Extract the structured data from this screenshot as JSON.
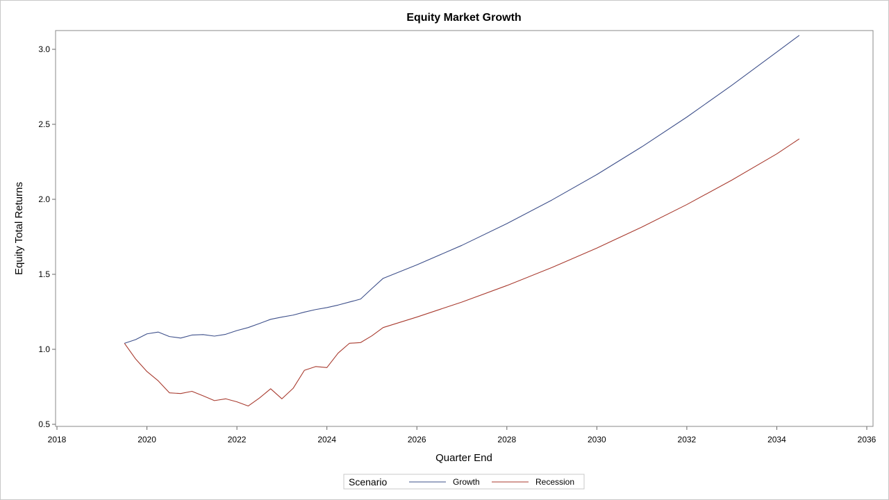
{
  "chart_data": {
    "type": "line",
    "title": "Equity Market Growth",
    "xlabel": "Quarter End",
    "ylabel": "Equity Total Returns",
    "xlim": [
      2018,
      2036
    ],
    "ylim": [
      0.5,
      3.1
    ],
    "xticks": [
      2018,
      2020,
      2022,
      2024,
      2026,
      2028,
      2030,
      2032,
      2034,
      2036
    ],
    "xtick_labels": [
      "2018",
      "2020",
      "2022",
      "2024",
      "2026",
      "2028",
      "2030",
      "2032",
      "2034",
      "2036"
    ],
    "yticks": [
      0.5,
      1.0,
      1.5,
      2.0,
      2.5,
      3.0
    ],
    "ytick_labels": [
      "0.5",
      "1.0",
      "1.5",
      "2.0",
      "2.5",
      "3.0"
    ],
    "grid": false,
    "legend": {
      "title": "Scenario",
      "position": "bottom-center"
    },
    "series": [
      {
        "name": "Growth",
        "color": "#3d4f8a",
        "points": [
          [
            2019.5,
            1.04
          ],
          [
            2019.75,
            1.065
          ],
          [
            2020.0,
            1.103
          ],
          [
            2020.25,
            1.115
          ],
          [
            2020.5,
            1.085
          ],
          [
            2020.75,
            1.075
          ],
          [
            2021.0,
            1.095
          ],
          [
            2021.25,
            1.098
          ],
          [
            2021.5,
            1.088
          ],
          [
            2021.75,
            1.1
          ],
          [
            2022.0,
            1.125
          ],
          [
            2022.25,
            1.145
          ],
          [
            2022.5,
            1.172
          ],
          [
            2022.75,
            1.2
          ],
          [
            2023.0,
            1.215
          ],
          [
            2023.25,
            1.228
          ],
          [
            2023.5,
            1.248
          ],
          [
            2023.75,
            1.265
          ],
          [
            2024.0,
            1.278
          ],
          [
            2024.25,
            1.295
          ],
          [
            2024.5,
            1.315
          ],
          [
            2024.75,
            1.335
          ],
          [
            2025.0,
            1.405
          ],
          [
            2025.25,
            1.473
          ],
          [
            2026.0,
            1.563
          ],
          [
            2027.0,
            1.693
          ],
          [
            2028.0,
            1.838
          ],
          [
            2029.0,
            1.995
          ],
          [
            2030.0,
            2.165
          ],
          [
            2031.0,
            2.35
          ],
          [
            2032.0,
            2.548
          ],
          [
            2033.0,
            2.76
          ],
          [
            2034.0,
            2.982
          ],
          [
            2034.5,
            3.093
          ]
        ]
      },
      {
        "name": "Recession",
        "color": "#a83a2e",
        "points": [
          [
            2019.5,
            1.04
          ],
          [
            2019.75,
            0.935
          ],
          [
            2020.0,
            0.852
          ],
          [
            2020.25,
            0.79
          ],
          [
            2020.5,
            0.71
          ],
          [
            2020.75,
            0.705
          ],
          [
            2021.0,
            0.72
          ],
          [
            2021.25,
            0.69
          ],
          [
            2021.5,
            0.658
          ],
          [
            2021.75,
            0.67
          ],
          [
            2022.0,
            0.65
          ],
          [
            2022.25,
            0.622
          ],
          [
            2022.5,
            0.675
          ],
          [
            2022.75,
            0.737
          ],
          [
            2023.0,
            0.67
          ],
          [
            2023.25,
            0.74
          ],
          [
            2023.5,
            0.86
          ],
          [
            2023.75,
            0.885
          ],
          [
            2024.0,
            0.878
          ],
          [
            2024.25,
            0.975
          ],
          [
            2024.5,
            1.04
          ],
          [
            2024.75,
            1.045
          ],
          [
            2025.0,
            1.09
          ],
          [
            2025.25,
            1.145
          ],
          [
            2026.0,
            1.215
          ],
          [
            2027.0,
            1.315
          ],
          [
            2028.0,
            1.425
          ],
          [
            2029.0,
            1.545
          ],
          [
            2030.0,
            1.675
          ],
          [
            2031.0,
            1.815
          ],
          [
            2032.0,
            1.965
          ],
          [
            2033.0,
            2.128
          ],
          [
            2034.0,
            2.303
          ],
          [
            2034.5,
            2.403
          ]
        ]
      }
    ]
  }
}
